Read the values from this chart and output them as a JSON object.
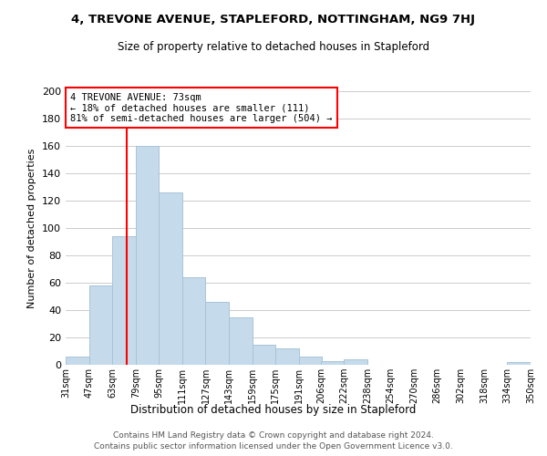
{
  "title": "4, TREVONE AVENUE, STAPLEFORD, NOTTINGHAM, NG9 7HJ",
  "subtitle": "Size of property relative to detached houses in Stapleford",
  "xlabel": "Distribution of detached houses by size in Stapleford",
  "ylabel": "Number of detached properties",
  "bar_color": "#c5daea",
  "bar_edge_color": "#a8c4d8",
  "vline_x": 73,
  "vline_color": "red",
  "bin_edges": [
    31,
    47,
    63,
    79,
    95,
    111,
    127,
    143,
    159,
    175,
    191,
    206,
    222,
    238,
    254,
    270,
    286,
    302,
    318,
    334,
    350
  ],
  "bin_labels": [
    "31sqm",
    "47sqm",
    "63sqm",
    "79sqm",
    "95sqm",
    "111sqm",
    "127sqm",
    "143sqm",
    "159sqm",
    "175sqm",
    "191sqm",
    "206sqm",
    "222sqm",
    "238sqm",
    "254sqm",
    "270sqm",
    "286sqm",
    "302sqm",
    "318sqm",
    "334sqm",
    "350sqm"
  ],
  "counts": [
    6,
    58,
    94,
    160,
    126,
    64,
    46,
    35,
    15,
    12,
    6,
    3,
    4,
    0,
    0,
    0,
    0,
    0,
    0,
    2
  ],
  "annotation_title": "4 TREVONE AVENUE: 73sqm",
  "annotation_line1": "← 18% of detached houses are smaller (111)",
  "annotation_line2": "81% of semi-detached houses are larger (504) →",
  "annotation_box_color": "white",
  "annotation_box_edge_color": "red",
  "ylim": [
    0,
    200
  ],
  "yticks": [
    0,
    20,
    40,
    60,
    80,
    100,
    120,
    140,
    160,
    180,
    200
  ],
  "footer1": "Contains HM Land Registry data © Crown copyright and database right 2024.",
  "footer2": "Contains public sector information licensed under the Open Government Licence v3.0.",
  "background_color": "#ffffff",
  "grid_color": "#cccccc"
}
